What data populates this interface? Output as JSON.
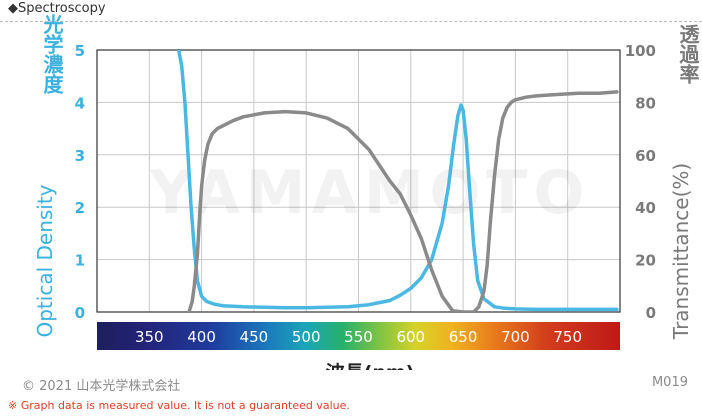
{
  "header": {
    "title": "◆Spectroscopy"
  },
  "footer": {
    "copyright": "© 2021 山本光学株式会社",
    "code": "M019",
    "note": "※ Graph data is measured value. It is not a guaranteed value."
  },
  "watermark": "YAMAMOTO",
  "colors": {
    "optical_density": "#4ab8e2",
    "transmittance": "#8a8a8a",
    "left_axis_text": "#3ab1de",
    "right_axis_text": "#7a7a7a"
  },
  "chart_data": {
    "type": "line",
    "xlabel": "波長(nm)",
    "x_ticks": [
      "350",
      "400",
      "450",
      "500",
      "550",
      "600",
      "650",
      "700",
      "750"
    ],
    "xlim": [
      300,
      800
    ],
    "y_left": {
      "label": "光学濃度",
      "label_en": "Optical Density",
      "ticks": [
        "0",
        "1",
        "2",
        "3",
        "4",
        "5"
      ],
      "range": [
        0,
        5
      ]
    },
    "y_right": {
      "label": "透過率",
      "label_en": "Transmittance(%)",
      "ticks": [
        "0",
        "20",
        "40",
        "60",
        "80",
        "100"
      ],
      "range": [
        0,
        100
      ]
    },
    "grid": true,
    "spectrum_bar": true,
    "series": [
      {
        "name": "光学濃度",
        "axis": "left",
        "x": [
          378,
          381,
          384,
          387,
          390,
          393,
          396,
          400,
          405,
          412,
          420,
          440,
          460,
          480,
          500,
          520,
          540,
          560,
          580,
          590,
          600,
          610,
          620,
          630,
          636,
          641,
          645,
          648,
          650,
          653,
          656,
          660,
          664,
          670,
          680,
          690,
          700,
          720,
          740,
          760,
          780,
          797
        ],
        "y": [
          5.0,
          4.7,
          4.0,
          3.0,
          2.0,
          1.2,
          0.6,
          0.3,
          0.2,
          0.15,
          0.12,
          0.1,
          0.09,
          0.08,
          0.08,
          0.09,
          0.1,
          0.14,
          0.22,
          0.32,
          0.45,
          0.65,
          1.0,
          1.7,
          2.4,
          3.2,
          3.75,
          3.95,
          3.85,
          3.3,
          2.4,
          1.3,
          0.6,
          0.25,
          0.1,
          0.07,
          0.06,
          0.05,
          0.05,
          0.05,
          0.05,
          0.05
        ]
      },
      {
        "name": "透過率",
        "axis": "right",
        "x": [
          388,
          391,
          393,
          396,
          398,
          400,
          403,
          406,
          410,
          415,
          420,
          430,
          440,
          460,
          480,
          500,
          520,
          540,
          560,
          570,
          580,
          590,
          600,
          610,
          620,
          630,
          640,
          650,
          655,
          660,
          665,
          670,
          673,
          676,
          680,
          684,
          688,
          692,
          696,
          700,
          710,
          720,
          740,
          760,
          780,
          797
        ],
        "y": [
          0,
          4,
          10,
          22,
          36,
          48,
          58,
          64,
          68,
          70,
          71,
          73,
          74.5,
          76,
          76.5,
          76,
          74,
          70,
          62,
          56,
          50,
          45,
          37,
          28,
          16,
          6,
          0.5,
          0,
          0,
          0,
          2,
          8,
          18,
          34,
          52,
          66,
          74,
          78,
          80,
          81,
          82,
          82.5,
          83,
          83.5,
          83.5,
          84
        ]
      }
    ]
  }
}
